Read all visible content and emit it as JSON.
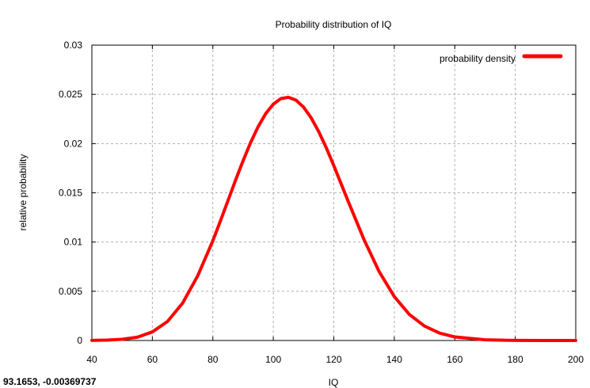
{
  "status_readout": "93.1653, -0.00369737",
  "chart_data": {
    "type": "line",
    "title": "Probability distribution of IQ",
    "xlabel": "IQ",
    "ylabel": "relative probability",
    "xlim": [
      40,
      200
    ],
    "ylim": [
      0,
      0.03
    ],
    "x_ticks": [
      "40",
      "60",
      "80",
      "100",
      "120",
      "140",
      "160",
      "180",
      "200"
    ],
    "y_ticks": [
      "0",
      "0.005",
      "0.01",
      "0.015",
      "0.02",
      "0.025",
      "0.03"
    ],
    "grid": true,
    "legend_position": "top-right",
    "series": [
      {
        "name": "probability density",
        "color": "#ff0000",
        "x": [
          40,
          45,
          50,
          55,
          60,
          65,
          70,
          75,
          80,
          82.5,
          85,
          87.5,
          90,
          92.5,
          95,
          97.5,
          100,
          102.5,
          105,
          107.5,
          110,
          112.5,
          115,
          117.5,
          120,
          125,
          130,
          135,
          140,
          145,
          150,
          155,
          160,
          170,
          180,
          190,
          200
        ],
        "y": [
          1e-05,
          4e-05,
          0.00012,
          0.00033,
          0.00087,
          0.00193,
          0.00379,
          0.00657,
          0.01013,
          0.01214,
          0.0142,
          0.01627,
          0.01826,
          0.02011,
          0.02173,
          0.02305,
          0.02401,
          0.02457,
          0.0247,
          0.02441,
          0.0237,
          0.02262,
          0.02122,
          0.01958,
          0.01776,
          0.01395,
          0.01024,
          0.00699,
          0.00446,
          0.00264,
          0.00146,
          0.00075,
          0.00036,
          7e-05,
          1e-05,
          0,
          0
        ]
      }
    ]
  }
}
